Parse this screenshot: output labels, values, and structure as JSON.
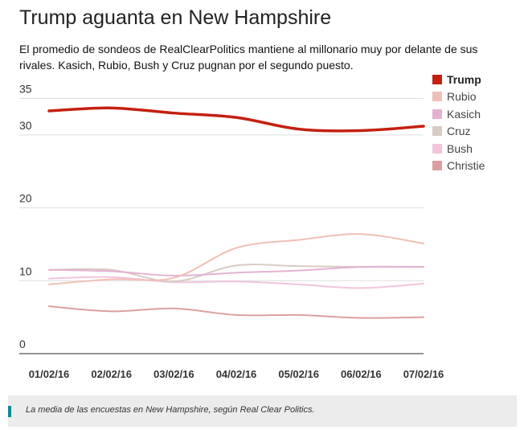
{
  "header": {
    "title": "Trump aguanta en New Hampshire",
    "subtitle": "El promedio de sondeos de RealClearPolitics mantiene al millonario muy por delante de sus rivales. Kasich, Rubio, Bush y Cruz pugnan por el segundo puesto."
  },
  "chart_data": {
    "type": "line",
    "title": "Trump aguanta en New Hampshire",
    "xlabel": "",
    "ylabel": "",
    "x": [
      "01/02/16",
      "02/02/16",
      "03/02/16",
      "04/02/16",
      "05/02/16",
      "06/02/16",
      "07/02/16"
    ],
    "yticks": [
      0,
      10,
      20,
      30,
      35
    ],
    "ylim": [
      0,
      35
    ],
    "grid": true,
    "legend_position": "right",
    "series": [
      {
        "name": "Trump",
        "color": "#c4200f",
        "values": [
          33.3,
          33.7,
          33.0,
          32.4,
          30.8,
          30.6,
          31.2
        ]
      },
      {
        "name": "Rubio",
        "color": "#f0c0b6",
        "values": [
          9.5,
          10.2,
          10.4,
          14.5,
          15.6,
          16.4,
          15.1
        ]
      },
      {
        "name": "Kasich",
        "color": "#e3b2d3",
        "values": [
          11.5,
          11.3,
          10.7,
          11.1,
          11.4,
          11.9,
          11.9
        ]
      },
      {
        "name": "Cruz",
        "color": "#d8ccc4",
        "values": [
          11.5,
          11.5,
          9.9,
          12.1,
          12.0,
          11.9,
          11.9
        ]
      },
      {
        "name": "Bush",
        "color": "#f2c4dc",
        "values": [
          10.3,
          10.5,
          9.8,
          9.9,
          9.5,
          9.0,
          9.6
        ]
      },
      {
        "name": "Christie",
        "color": "#dc9f9f",
        "values": [
          6.5,
          5.8,
          6.2,
          5.3,
          5.3,
          4.9,
          5.0
        ]
      }
    ]
  },
  "caption": "La media de las encuestas en New Hampshire, según Real Clear Politics."
}
